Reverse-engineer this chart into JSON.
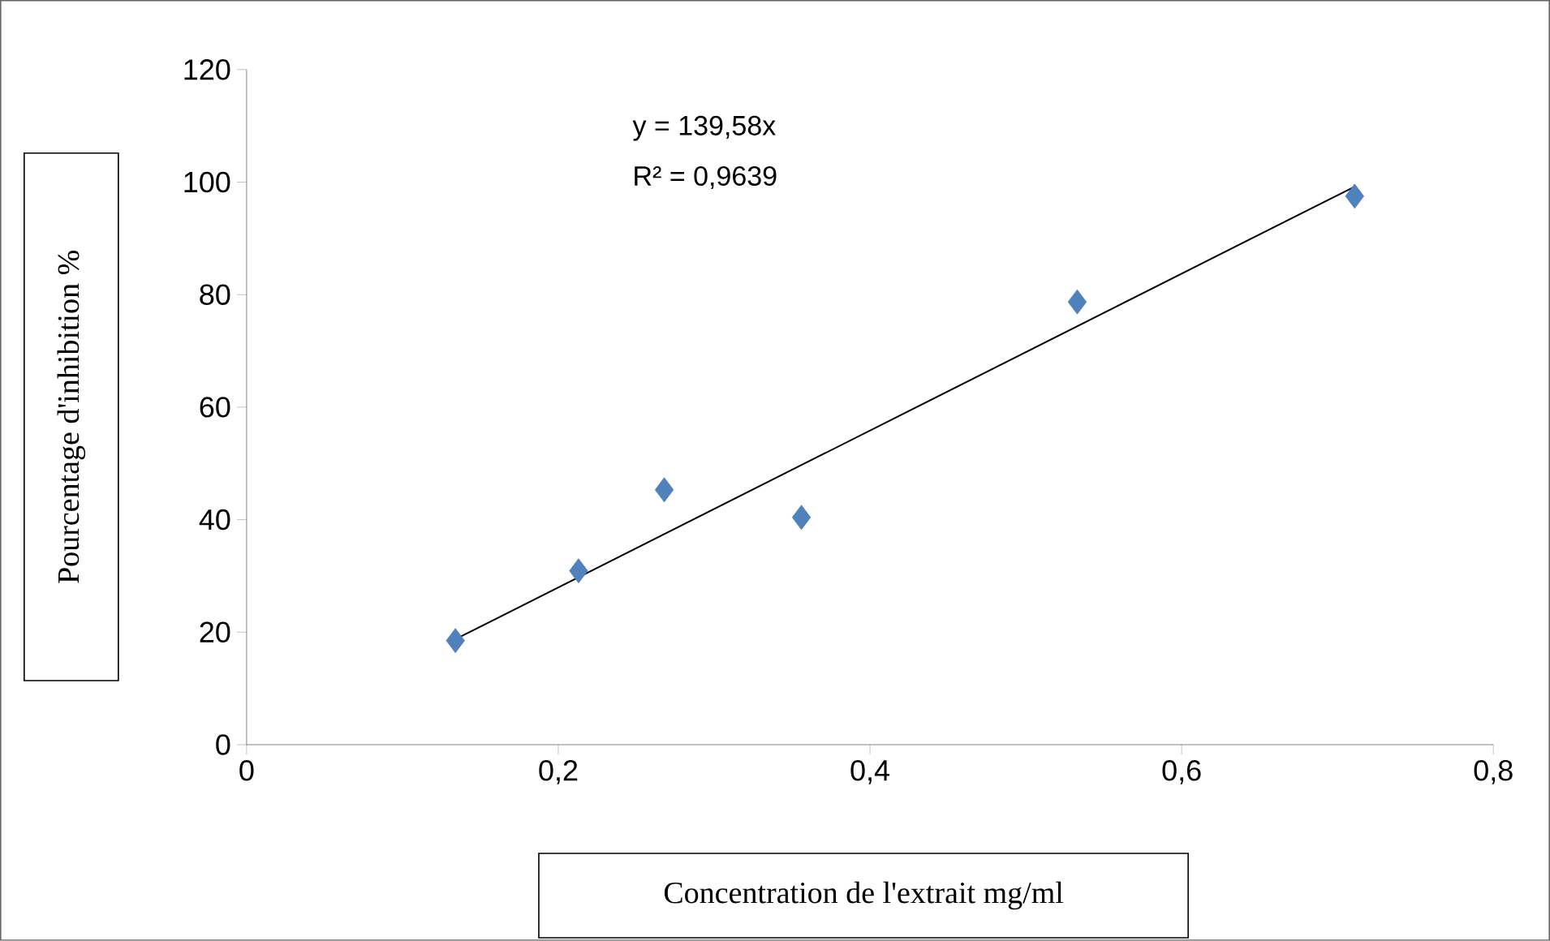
{
  "chart_data": {
    "type": "scatter",
    "xlabel": "Concentration de l'extrait mg/ml",
    "ylabel": "Pourcentage d'inhibition %",
    "annotations": [
      "y = 139,58x",
      "R² = 0,9639"
    ],
    "xlim": [
      0,
      0.8
    ],
    "ylim": [
      0,
      120
    ],
    "xticks": [
      {
        "value": 0,
        "label": "0"
      },
      {
        "value": 0.2,
        "label": "0,2"
      },
      {
        "value": 0.4,
        "label": "0,4"
      },
      {
        "value": 0.6,
        "label": "0,6"
      },
      {
        "value": 0.8,
        "label": "0,8"
      }
    ],
    "yticks": [
      0,
      20,
      40,
      60,
      80,
      100,
      120
    ],
    "marker": "diamond",
    "series": [
      {
        "color": "#4f81bd",
        "x": [
          0.134,
          0.213,
          0.268,
          0.356,
          0.533,
          0.711
        ],
        "values": [
          18.5,
          30.9,
          45.3,
          40.4,
          78.7,
          97.5
        ]
      },
      {
        "type": "line",
        "color": "#000000",
        "marker": "none",
        "line_style": "solid",
        "x": [
          0.133,
          0.711
        ],
        "values": [
          18.6,
          99.2
        ]
      }
    ]
  }
}
